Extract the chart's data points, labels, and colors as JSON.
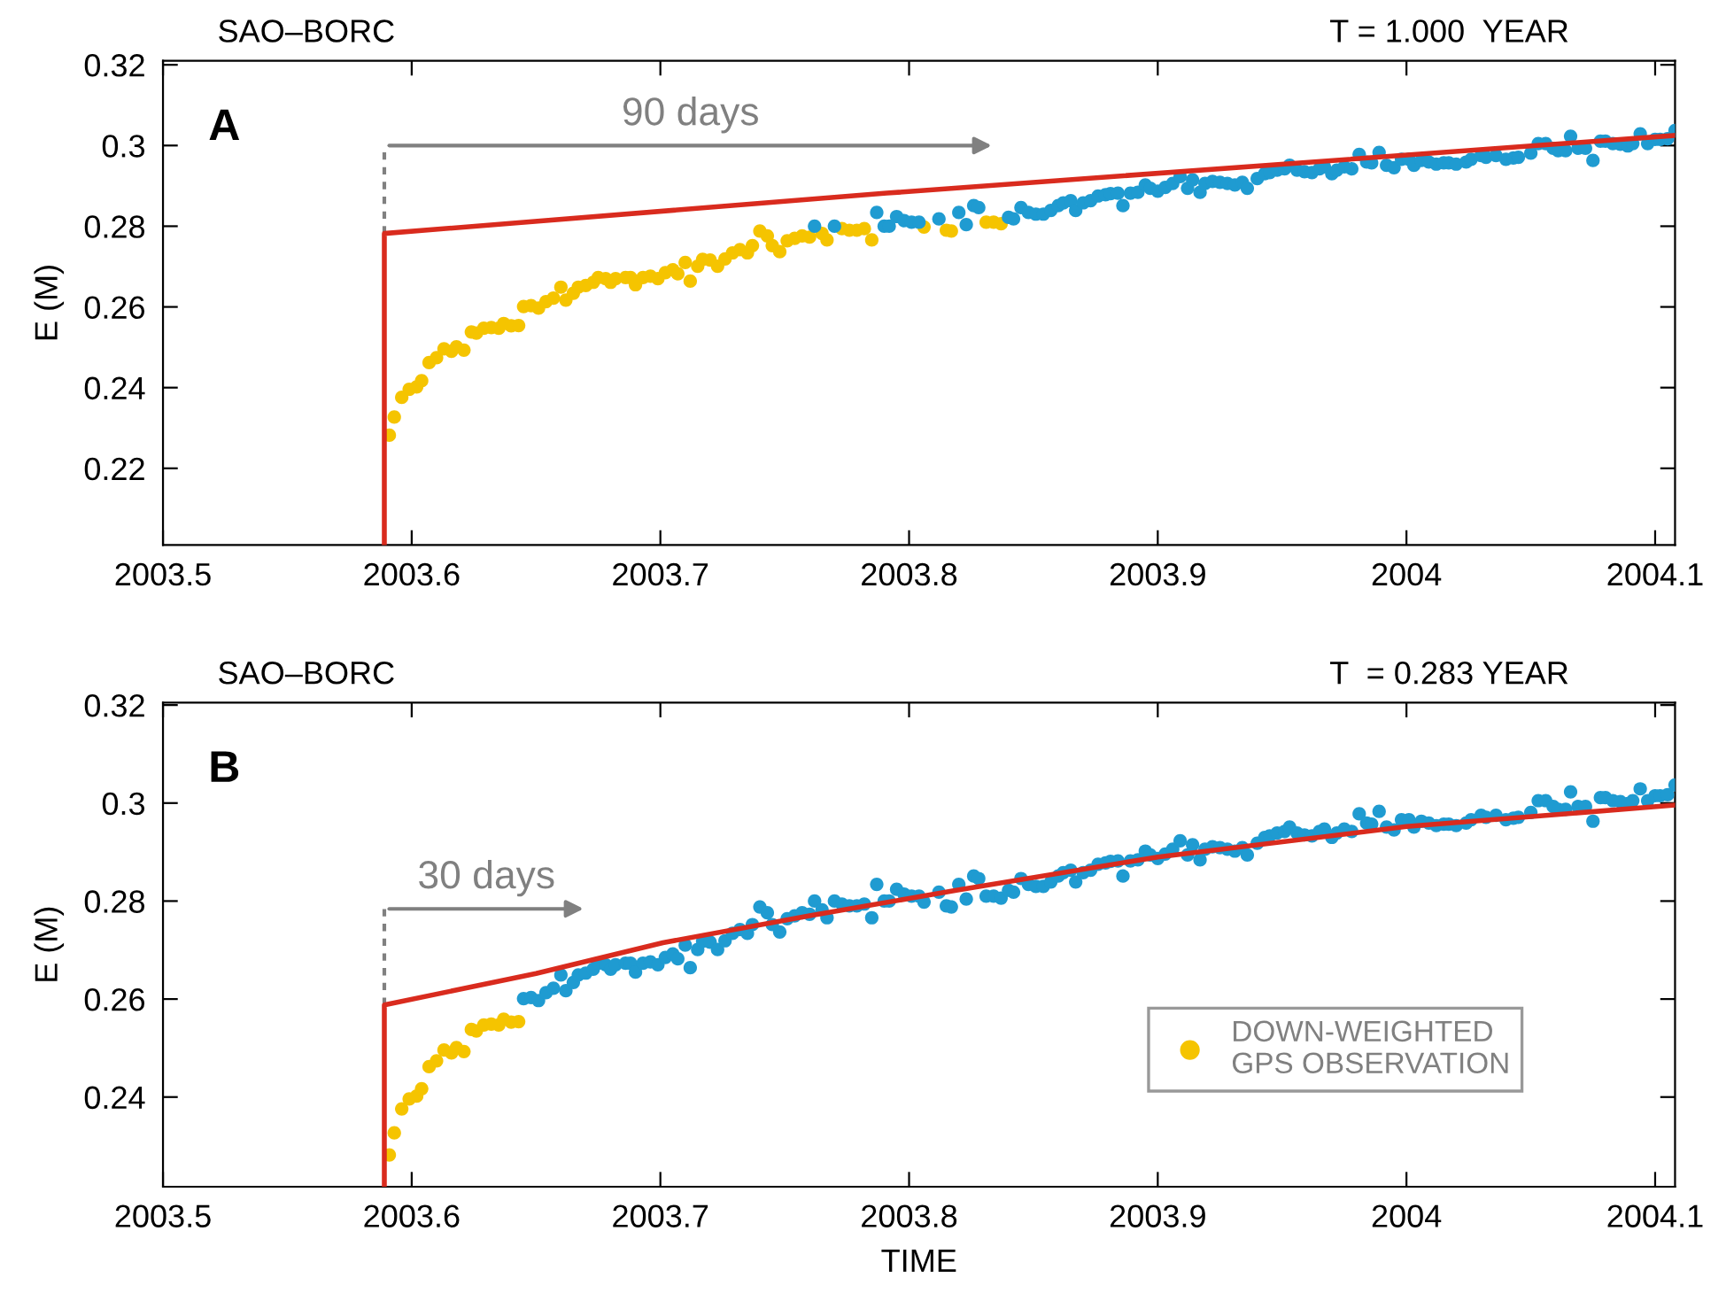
{
  "chart_data": [
    {
      "type": "scatter",
      "title": "SAO–BORC",
      "subtitle": "T = 1.000  YEAR",
      "ylabel": "E (M)",
      "xlim": [
        2003.5,
        2004.108
      ],
      "xticks": [
        2003.5,
        2003.6,
        2003.7,
        2003.8,
        2003.9,
        2004,
        2004.1
      ],
      "ylim": [
        0.201,
        0.321
      ],
      "yticks": [
        0.22,
        0.24,
        0.26,
        0.28,
        0.3,
        0.32
      ],
      "grid": false,
      "legend": false,
      "marker": "circle",
      "annotations": [
        "A",
        "90 days"
      ],
      "series": [
        {
          "color": "#f5c400",
          "x": [
            2003.591,
            2003.593,
            2003.596,
            2003.599,
            2003.602,
            2003.604,
            2003.607,
            2003.61,
            2003.613,
            2003.616,
            2003.618,
            2003.621,
            2003.624,
            2003.626,
            2003.629,
            2003.632,
            2003.635,
            2003.637,
            2003.64,
            2003.643,
            2003.645,
            2003.648,
            2003.651,
            2003.654,
            2003.657,
            2003.66,
            2003.662,
            2003.665,
            2003.667,
            2003.67,
            2003.673,
            2003.675,
            2003.678,
            2003.68,
            2003.682,
            2003.686,
            2003.688,
            2003.69,
            2003.693,
            2003.696,
            2003.699,
            2003.702,
            2003.705,
            2003.707,
            2003.71,
            2003.712,
            2003.715,
            2003.717,
            2003.72,
            2003.723,
            2003.726,
            2003.729,
            2003.732,
            2003.735,
            2003.737,
            2003.74,
            2003.743,
            2003.745,
            2003.748,
            2003.751,
            2003.754,
            2003.757,
            2003.76,
            2003.765,
            2003.767,
            2003.773,
            2003.776,
            2003.779,
            2003.782,
            2003.785,
            2003.806,
            2003.815,
            2003.817,
            2003.831,
            2003.834,
            2003.837
          ],
          "values": [
            0.2282,
            0.2327,
            0.2376,
            0.2396,
            0.2402,
            0.2417,
            0.2462,
            0.2474,
            0.2496,
            0.249,
            0.2501,
            0.2493,
            0.2538,
            0.2535,
            0.2547,
            0.2549,
            0.2547,
            0.2559,
            0.2553,
            0.2554,
            0.2601,
            0.2603,
            0.2597,
            0.2613,
            0.2622,
            0.2649,
            0.2617,
            0.2634,
            0.2649,
            0.2653,
            0.2661,
            0.2673,
            0.267,
            0.2661,
            0.267,
            0.2673,
            0.2673,
            0.2655,
            0.2673,
            0.2676,
            0.267,
            0.2685,
            0.2692,
            0.2682,
            0.271,
            0.2664,
            0.2701,
            0.2718,
            0.2716,
            0.2701,
            0.2719,
            0.2734,
            0.2742,
            0.2734,
            0.2752,
            0.2788,
            0.2776,
            0.2752,
            0.2737,
            0.2764,
            0.277,
            0.2776,
            0.2773,
            0.2782,
            0.2766,
            0.2794,
            0.279,
            0.279,
            0.2794,
            0.2766,
            0.2798,
            0.279,
            0.2788,
            0.281,
            0.281,
            0.2806
          ]
        },
        {
          "color": "#1f9bd1",
          "x": [
            2003.762,
            2003.77,
            2003.787,
            2003.79,
            2003.792,
            2003.795,
            2003.798,
            2003.801,
            2003.804,
            2003.812,
            2003.82,
            2003.823,
            2003.826,
            2003.828,
            2003.84,
            2003.842,
            2003.845,
            2003.848,
            2003.851,
            2003.854,
            2003.857,
            2003.86,
            2003.862,
            2003.865,
            2003.867,
            2003.87,
            2003.873,
            2003.876,
            2003.879,
            2003.881,
            2003.884,
            2003.886,
            2003.889,
            2003.892,
            2003.895,
            2003.897,
            2003.9,
            2003.903,
            2003.906,
            2003.909,
            2003.912,
            2003.914,
            2003.917,
            2003.919,
            2003.922,
            2003.925,
            2003.928,
            2003.931,
            2003.934,
            2003.936,
            2003.94,
            2003.943,
            2003.945,
            2003.948,
            2003.951,
            2003.953,
            2003.956,
            2003.959,
            2003.962,
            2003.965,
            2003.967,
            2003.97,
            2003.972,
            2003.975,
            2003.978,
            2003.981,
            2003.984,
            2003.986,
            2003.989,
            2003.992,
            2003.995,
            2003.998,
            2004.001,
            2004.003,
            2004.006,
            2004.009,
            2004.012,
            2004.015,
            2004.017,
            2004.02,
            2004.024,
            2004.026,
            2004.03,
            2004.032,
            2004.036,
            2004.04,
            2004.043,
            2004.045,
            2004.05,
            2004.053,
            2004.056,
            2004.059,
            2004.061,
            2004.064,
            2004.066,
            2004.069,
            2004.072,
            2004.075,
            2004.078,
            2004.08,
            2004.083,
            2004.086,
            2004.089,
            2004.091,
            2004.094,
            2004.097,
            2004.1,
            2004.102,
            2004.105,
            2004.108
          ],
          "values": [
            0.28,
            0.28,
            0.2834,
            0.28,
            0.28,
            0.2824,
            0.2814,
            0.281,
            0.281,
            0.2818,
            0.2834,
            0.2804,
            0.2851,
            0.2846,
            0.2822,
            0.2818,
            0.2846,
            0.2834,
            0.283,
            0.283,
            0.2839,
            0.2851,
            0.2858,
            0.2863,
            0.2839,
            0.2858,
            0.2863,
            0.2875,
            0.2878,
            0.2881,
            0.2882,
            0.2851,
            0.2882,
            0.2884,
            0.2902,
            0.2894,
            0.2887,
            0.2896,
            0.2906,
            0.2923,
            0.2894,
            0.2915,
            0.2884,
            0.2906,
            0.2911,
            0.2909,
            0.2906,
            0.2902,
            0.2909,
            0.2894,
            0.2918,
            0.293,
            0.2933,
            0.2939,
            0.2942,
            0.2951,
            0.2939,
            0.2935,
            0.2933,
            0.2942,
            0.2947,
            0.293,
            0.2939,
            0.2947,
            0.2942,
            0.2978,
            0.2959,
            0.2957,
            0.2983,
            0.2951,
            0.2945,
            0.2966,
            0.2966,
            0.2951,
            0.2963,
            0.2959,
            0.2954,
            0.2957,
            0.2957,
            0.2954,
            0.2959,
            0.2966,
            0.2975,
            0.2971,
            0.2975,
            0.2966,
            0.2969,
            0.2971,
            0.2981,
            0.3005,
            0.3005,
            0.2993,
            0.2987,
            0.2987,
            0.3023,
            0.2993,
            0.2993,
            0.2963,
            0.3011,
            0.3011,
            0.3005,
            0.3003,
            0.2999,
            0.3005,
            0.3029,
            0.3005,
            0.3015,
            0.3015,
            0.3017,
            0.3037
          ]
        },
        {
          "type": "line",
          "marker": "none",
          "color": "#d92b1e",
          "x": [
            2003.589,
            2003.589,
            2003.791,
            2004.108
          ],
          "values": [
            0.201,
            0.2782,
            0.2882,
            0.3025
          ]
        }
      ]
    },
    {
      "type": "scatter",
      "title": "SAO–BORC",
      "subtitle": "T  = 0.283 YEAR",
      "ylabel": "E (M)",
      "xlabel": "TIME",
      "xlim": [
        2003.5,
        2004.108
      ],
      "xticks": [
        2003.5,
        2003.6,
        2003.7,
        2003.8,
        2003.9,
        2004,
        2004.1
      ],
      "ylim": [
        0.2217,
        0.3205
      ],
      "yticks": [
        0.24,
        0.26,
        0.28,
        0.3,
        0.32
      ],
      "grid": false,
      "legend": "bottom right",
      "marker": "circle",
      "annotations": [
        "B",
        {
          "text": "30 days",
          "x": 2003.589,
          "y": 0.2588
        }
      ],
      "series": [
        {
          "name": "DOWN-WEIGHTED\nGPS OBSERVATION",
          "color": "#f5c400",
          "x": [
            2003.591,
            2003.593,
            2003.596,
            2003.599,
            2003.602,
            2003.604,
            2003.607,
            2003.61,
            2003.613,
            2003.616,
            2003.618,
            2003.621,
            2003.624,
            2003.626,
            2003.629,
            2003.632,
            2003.635,
            2003.637,
            2003.64,
            2003.643
          ],
          "values": [
            0.2282,
            0.2327,
            0.2376,
            0.2396,
            0.2402,
            0.2417,
            0.2462,
            0.2474,
            0.2496,
            0.249,
            0.2501,
            0.2493,
            0.2538,
            0.2535,
            0.2547,
            0.2549,
            0.2547,
            0.2559,
            0.2553,
            0.2554
          ]
        },
        {
          "color": "#1f9bd1",
          "x": [
            2003.645,
            2003.648,
            2003.651,
            2003.654,
            2003.657,
            2003.66,
            2003.662,
            2003.665,
            2003.667,
            2003.67,
            2003.673,
            2003.675,
            2003.678,
            2003.68,
            2003.682,
            2003.686,
            2003.688,
            2003.69,
            2003.693,
            2003.696,
            2003.699,
            2003.702,
            2003.705,
            2003.707,
            2003.71,
            2003.712,
            2003.715,
            2003.717,
            2003.72,
            2003.723,
            2003.726,
            2003.729,
            2003.732,
            2003.735,
            2003.737,
            2003.74,
            2003.743,
            2003.745,
            2003.748,
            2003.751,
            2003.754,
            2003.757,
            2003.76,
            2003.762,
            2003.765,
            2003.767,
            2003.77,
            2003.773,
            2003.776,
            2003.779,
            2003.782,
            2003.785,
            2003.787,
            2003.79,
            2003.792,
            2003.795,
            2003.798,
            2003.801,
            2003.804,
            2003.806,
            2003.812,
            2003.815,
            2003.817,
            2003.82,
            2003.823,
            2003.826,
            2003.828,
            2003.831,
            2003.834,
            2003.837,
            2003.84,
            2003.842,
            2003.845,
            2003.848,
            2003.851,
            2003.854,
            2003.857,
            2003.86,
            2003.862,
            2003.865,
            2003.867,
            2003.87,
            2003.873,
            2003.876,
            2003.879,
            2003.881,
            2003.884,
            2003.886,
            2003.889,
            2003.892,
            2003.895,
            2003.897,
            2003.9,
            2003.903,
            2003.906,
            2003.909,
            2003.912,
            2003.914,
            2003.917,
            2003.919,
            2003.922,
            2003.925,
            2003.928,
            2003.931,
            2003.934,
            2003.936,
            2003.94,
            2003.943,
            2003.945,
            2003.948,
            2003.951,
            2003.953,
            2003.956,
            2003.959,
            2003.962,
            2003.965,
            2003.967,
            2003.97,
            2003.972,
            2003.975,
            2003.978,
            2003.981,
            2003.984,
            2003.986,
            2003.989,
            2003.992,
            2003.995,
            2003.998,
            2004.001,
            2004.003,
            2004.006,
            2004.009,
            2004.012,
            2004.015,
            2004.017,
            2004.02,
            2004.024,
            2004.026,
            2004.03,
            2004.032,
            2004.036,
            2004.04,
            2004.043,
            2004.045,
            2004.05,
            2004.053,
            2004.056,
            2004.059,
            2004.061,
            2004.064,
            2004.066,
            2004.069,
            2004.072,
            2004.075,
            2004.078,
            2004.08,
            2004.083,
            2004.086,
            2004.089,
            2004.091,
            2004.094,
            2004.097,
            2004.1,
            2004.102,
            2004.105,
            2004.108
          ],
          "values": [
            0.2601,
            0.2603,
            0.2597,
            0.2613,
            0.2622,
            0.2649,
            0.2617,
            0.2634,
            0.2649,
            0.2653,
            0.2661,
            0.2673,
            0.267,
            0.2661,
            0.267,
            0.2673,
            0.2673,
            0.2655,
            0.2673,
            0.2676,
            0.267,
            0.2685,
            0.2692,
            0.2682,
            0.271,
            0.2664,
            0.2701,
            0.2718,
            0.2716,
            0.2701,
            0.2719,
            0.2734,
            0.2742,
            0.2734,
            0.2752,
            0.2788,
            0.2776,
            0.2752,
            0.2737,
            0.2764,
            0.277,
            0.2776,
            0.2773,
            0.28,
            0.2782,
            0.2766,
            0.28,
            0.2794,
            0.279,
            0.279,
            0.2794,
            0.2766,
            0.2834,
            0.28,
            0.28,
            0.2824,
            0.2814,
            0.281,
            0.281,
            0.2798,
            0.2818,
            0.279,
            0.2788,
            0.2834,
            0.2804,
            0.2851,
            0.2846,
            0.281,
            0.281,
            0.2806,
            0.2822,
            0.2818,
            0.2846,
            0.2834,
            0.283,
            0.283,
            0.2839,
            0.2851,
            0.2858,
            0.2863,
            0.2839,
            0.2858,
            0.2863,
            0.2875,
            0.2878,
            0.2881,
            0.2882,
            0.2851,
            0.2882,
            0.2884,
            0.2902,
            0.2894,
            0.2887,
            0.2896,
            0.2906,
            0.2923,
            0.2894,
            0.2915,
            0.2884,
            0.2906,
            0.2911,
            0.2909,
            0.2906,
            0.2902,
            0.2909,
            0.2894,
            0.2918,
            0.293,
            0.2933,
            0.2939,
            0.2942,
            0.2951,
            0.2939,
            0.2935,
            0.2933,
            0.2942,
            0.2947,
            0.293,
            0.2939,
            0.2947,
            0.2942,
            0.2978,
            0.2959,
            0.2957,
            0.2983,
            0.2951,
            0.2945,
            0.2966,
            0.2966,
            0.2951,
            0.2963,
            0.2959,
            0.2954,
            0.2957,
            0.2957,
            0.2954,
            0.2959,
            0.2966,
            0.2975,
            0.2971,
            0.2975,
            0.2966,
            0.2969,
            0.2971,
            0.2981,
            0.3005,
            0.3005,
            0.2993,
            0.2987,
            0.2987,
            0.3023,
            0.2993,
            0.2993,
            0.2963,
            0.3011,
            0.3011,
            0.3005,
            0.3003,
            0.2999,
            0.3005,
            0.3029,
            0.3005,
            0.3015,
            0.3015,
            0.3017,
            0.3037
          ]
        },
        {
          "type": "line",
          "marker": "none",
          "color": "#d92b1e",
          "x": [
            2003.589,
            2003.589,
            2003.65,
            2003.701,
            2003.76,
            2003.819,
            2003.9,
            2004,
            2004.108
          ],
          "values": [
            0.2217,
            0.2588,
            0.2652,
            0.2715,
            0.277,
            0.2822,
            0.289,
            0.2952,
            0.2996
          ]
        }
      ]
    }
  ]
}
